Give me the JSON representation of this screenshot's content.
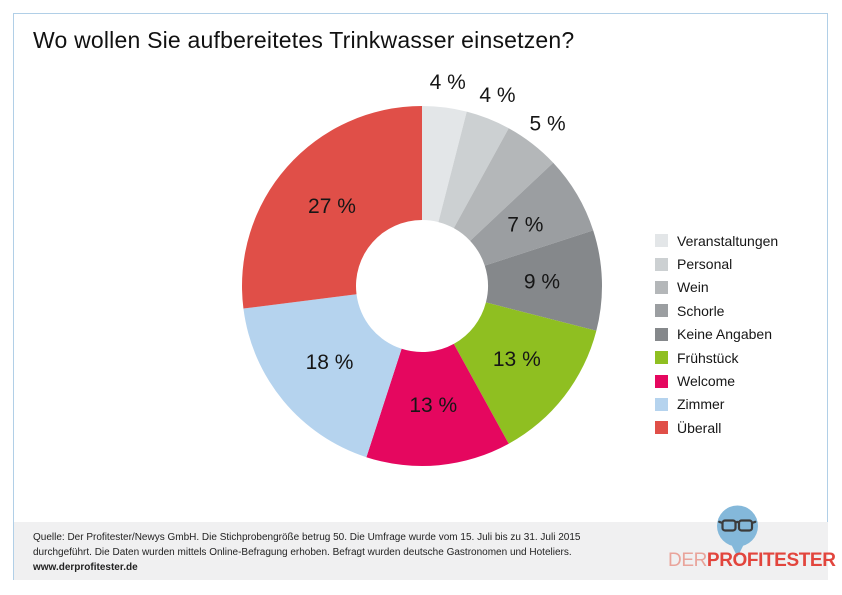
{
  "title": "Wo wollen Sie aufbereitetes Trinkwasser einsetzen?",
  "chart_data": {
    "type": "pie",
    "subtype": "donut",
    "title": "Wo wollen Sie aufbereitetes Trinkwasser einsetzen?",
    "units": "%",
    "direction": "clockwise",
    "start_angle_deg": 0,
    "legend_position": "right",
    "series": [
      {
        "name": "Veranstaltungen",
        "value": 4,
        "label": "4 %",
        "color": "#e3e6e8",
        "label_position": "outside"
      },
      {
        "name": "Personal",
        "value": 4,
        "label": "4 %",
        "color": "#ccd0d2",
        "label_position": "outside"
      },
      {
        "name": "Wein",
        "value": 5,
        "label": "5 %",
        "color": "#b4b7b9",
        "label_position": "outside"
      },
      {
        "name": "Schorle",
        "value": 7,
        "label": "7 %",
        "color": "#9b9ea1",
        "label_position": "inside"
      },
      {
        "name": "Keine Angaben",
        "value": 9,
        "label": "9 %",
        "color": "#85888b",
        "label_position": "inside"
      },
      {
        "name": "Frühstück",
        "value": 13,
        "label": "13 %",
        "color": "#8fbf21",
        "label_position": "inside"
      },
      {
        "name": "Welcome",
        "value": 13,
        "label": "13 %",
        "color": "#e5075f",
        "label_position": "inside"
      },
      {
        "name": "Zimmer",
        "value": 18,
        "label": "18 %",
        "color": "#b5d3ee",
        "label_position": "inside"
      },
      {
        "name": "Überall",
        "value": 27,
        "label": "27 %",
        "color": "#e04f48",
        "label_position": "inside"
      }
    ]
  },
  "footer": {
    "line1": "Quelle: Der Profitester/Newys GmbH. Die Stichprobengröße betrug 50. Die Umfrage wurde vom 15. Juli bis zu 31. Juli 2015",
    "line2": "durchgeführt. Die Daten wurden mittels Online-Befragung erhoben. Befragt wurden deutsche Gastronomen und Hoteliers.",
    "line3": "www.derprofitester.de"
  },
  "logo": {
    "der": "DER",
    "profitester": "PROFITESTER"
  },
  "theme": {
    "card_border": "#b1cfe7",
    "footer_bg": "#f0f0f1",
    "bubble_blue": "#84b8da",
    "logo_red": "#e2453d",
    "logo_light_red": "#e9a49b",
    "text_dark": "#161616"
  }
}
